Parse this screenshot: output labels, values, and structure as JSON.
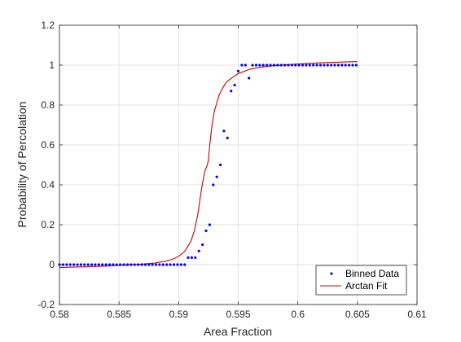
{
  "chart_data": {
    "type": "scatter",
    "title": "",
    "xlabel": "Area Fraction",
    "ylabel": "Probability of Percolation",
    "xlim": [
      0.58,
      0.61
    ],
    "ylim": [
      -0.2,
      1.2
    ],
    "xticks": [
      0.58,
      0.585,
      0.59,
      0.595,
      0.6,
      0.605,
      0.61
    ],
    "xtick_labels": [
      "0.58",
      "0.585",
      "0.59",
      "0.595",
      "0.6",
      "0.605",
      "0.61"
    ],
    "yticks": [
      -0.2,
      0,
      0.2,
      0.4,
      0.6,
      0.8,
      1,
      1.2
    ],
    "ytick_labels": [
      "-0.2",
      "0",
      "0.2",
      "0.4",
      "0.6",
      "0.8",
      "1",
      "1.2"
    ],
    "grid": true,
    "legend_position": "bottom-right",
    "series": [
      {
        "name": "Binned Data",
        "style": "points",
        "color": "#0000ff",
        "x": [
          0.58,
          0.5803,
          0.5806,
          0.5809,
          0.5812,
          0.5815,
          0.5818,
          0.5821,
          0.5824,
          0.5827,
          0.583,
          0.5833,
          0.5836,
          0.5839,
          0.5842,
          0.5845,
          0.5848,
          0.5851,
          0.5854,
          0.5857,
          0.586,
          0.5863,
          0.5866,
          0.5869,
          0.5872,
          0.5875,
          0.5878,
          0.5881,
          0.5884,
          0.5887,
          0.589,
          0.5893,
          0.5896,
          0.5899,
          0.5902,
          0.5905,
          0.5908,
          0.5911,
          0.5914,
          0.5917,
          0.592,
          0.5923,
          0.5926,
          0.5929,
          0.5932,
          0.5935,
          0.5938,
          0.5941,
          0.5944,
          0.5947,
          0.595,
          0.5953,
          0.5956,
          0.5959,
          0.5962,
          0.5965,
          0.5968,
          0.5971,
          0.5974,
          0.5977,
          0.598,
          0.5983,
          0.5986,
          0.5989,
          0.5992,
          0.5995,
          0.5998,
          0.6001,
          0.6004,
          0.6007,
          0.601,
          0.6013,
          0.6016,
          0.6019,
          0.6022,
          0.6025,
          0.6028,
          0.6031,
          0.6034,
          0.6037,
          0.604,
          0.6043,
          0.6046,
          0.6049
        ],
        "y": [
          0,
          0,
          0,
          0,
          0,
          0,
          0,
          0,
          0,
          0,
          0,
          0,
          0,
          0,
          0,
          0,
          0,
          0,
          0,
          0,
          0,
          0,
          0,
          0,
          0,
          0,
          0,
          0,
          0,
          0,
          0,
          0,
          0,
          0,
          0,
          0,
          0.035,
          0.035,
          0.035,
          0.068,
          0.1,
          0.17,
          0.2,
          0.4,
          0.44,
          0.5,
          0.67,
          0.635,
          0.87,
          0.9,
          0.97,
          1,
          1,
          0.935,
          1,
          1,
          1,
          1,
          1,
          1,
          1,
          1,
          1,
          1,
          1,
          1,
          1,
          1,
          1,
          1,
          1,
          1,
          1,
          1,
          1,
          1,
          1,
          1,
          1,
          1,
          1,
          1,
          1,
          1
        ]
      },
      {
        "name": "Arctan Fit",
        "style": "line",
        "color": "#cc0000",
        "x": [
          0.58,
          0.582,
          0.584,
          0.586,
          0.587,
          0.588,
          0.589,
          0.5895,
          0.59,
          0.5905,
          0.591,
          0.5913,
          0.5916,
          0.5919,
          0.592,
          0.5922,
          0.5924,
          0.5925,
          0.5926,
          0.5928,
          0.593,
          0.5931,
          0.5934,
          0.5937,
          0.594,
          0.5945,
          0.595,
          0.596,
          0.597,
          0.598,
          0.6,
          0.602,
          0.604,
          0.605
        ],
        "y": [
          -0.014,
          -0.011,
          -0.007,
          -0.001,
          0.003,
          0.008,
          0.018,
          0.027,
          0.042,
          0.066,
          0.114,
          0.166,
          0.248,
          0.37,
          0.407,
          0.469,
          0.498,
          0.525,
          0.595,
          0.7,
          0.77,
          0.79,
          0.851,
          0.886,
          0.915,
          0.938,
          0.958,
          0.98,
          0.991,
          0.997,
          1.006,
          1.012,
          1.016,
          1.018
        ]
      }
    ]
  }
}
